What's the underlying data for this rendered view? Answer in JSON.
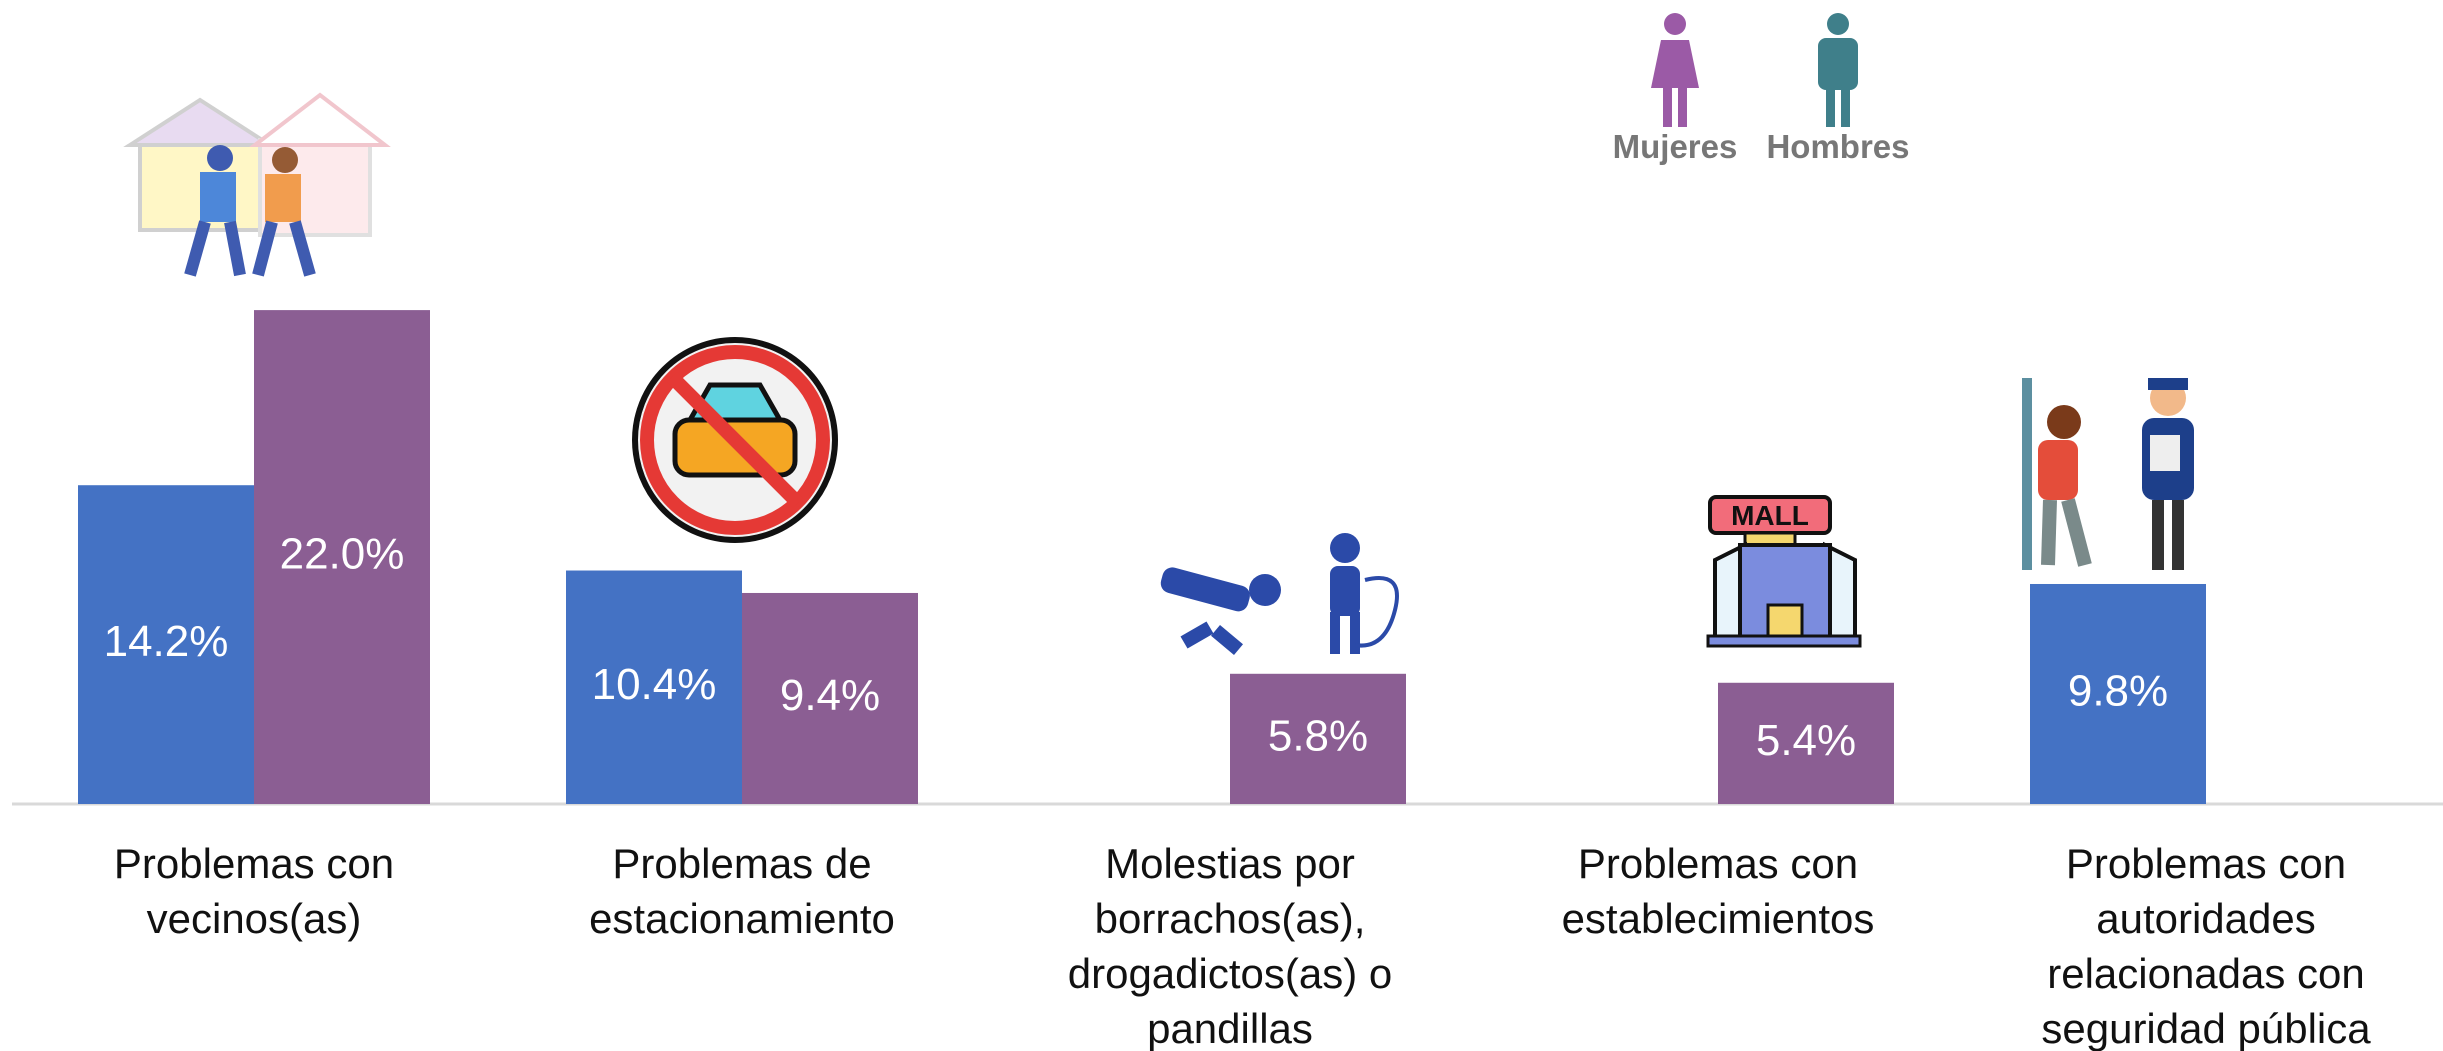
{
  "chart_data": {
    "type": "bar",
    "categories": [
      "Problemas con\nvecinos(as)",
      "Problemas de\nestacionamiento",
      "Molestias por\nborrachos(as),\ndrogadictos(as) o\npandillas",
      "Problemas con\nestablecimientos",
      "Problemas con\nautoridades\nrelacionadas con\nseguridad pública"
    ],
    "series": [
      {
        "name": "Hombres",
        "color": "#4472c4",
        "icon_color": "#3f7f8a",
        "values": [
          14.2,
          10.4,
          null,
          null,
          9.8
        ],
        "value_labels": [
          "14.2%",
          "10.4%",
          null,
          null,
          "9.8%"
        ]
      },
      {
        "name": "Mujeres",
        "color": "#8b5e93",
        "icon_color": "#9b5aa6",
        "values": [
          22.0,
          9.4,
          5.8,
          5.4,
          null
        ],
        "value_labels": [
          "22.0%",
          "9.4%",
          "5.8%",
          "5.4%",
          null
        ]
      }
    ]
  }
}
